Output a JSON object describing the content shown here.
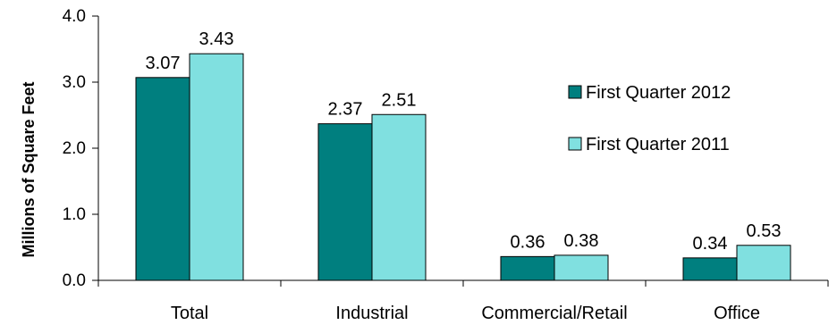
{
  "chart_data": {
    "type": "bar",
    "title": "",
    "xlabel": "",
    "ylabel": "Millions of Square Feet",
    "ylim": [
      0,
      4
    ],
    "yticks": [
      "0.0",
      "1.0",
      "2.0",
      "3.0",
      "4.0"
    ],
    "ytick_values": [
      0,
      1,
      2,
      3,
      4
    ],
    "categories": [
      "Total",
      "Industrial",
      "Commercial/Retail",
      "Office"
    ],
    "series": [
      {
        "name": "First Quarter 2012",
        "color": "#007F7F",
        "values": [
          3.07,
          2.37,
          0.36,
          0.34
        ],
        "labels": [
          "3.07",
          "2.37",
          "0.36",
          "0.34"
        ]
      },
      {
        "name": "First Quarter 2011",
        "color": "#80E0E0",
        "values": [
          3.43,
          2.51,
          0.38,
          0.53
        ],
        "labels": [
          "3.43",
          "2.51",
          "0.38",
          "0.53"
        ]
      }
    ],
    "grid": false,
    "legend_position": "right"
  }
}
